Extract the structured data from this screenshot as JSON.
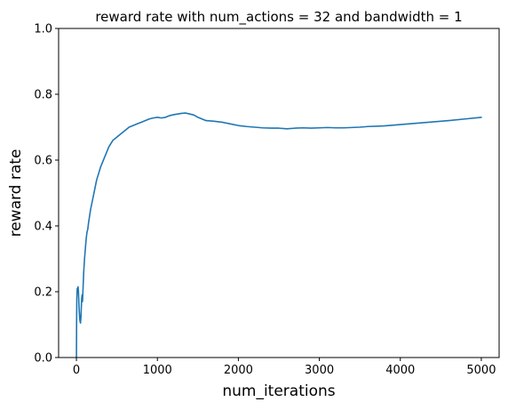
{
  "colors": {
    "series_line": "#1f77b4",
    "axes": "#000000",
    "background": "#ffffff"
  },
  "chart_data": {
    "type": "line",
    "title": "reward rate with num_actions = 32 and bandwidth = 1",
    "xlabel": "num_iterations",
    "ylabel": "reward rate",
    "xlim": [
      -220,
      5220
    ],
    "ylim": [
      0.0,
      1.0
    ],
    "xticks": [
      0,
      1000,
      2000,
      3000,
      4000,
      5000
    ],
    "yticks": [
      0.0,
      0.2,
      0.4,
      0.6,
      0.8,
      1.0
    ],
    "xtick_labels": [
      "0",
      "1000",
      "2000",
      "3000",
      "4000",
      "5000"
    ],
    "ytick_labels": [
      "0.0",
      "0.2",
      "0.4",
      "0.6",
      "0.8",
      "1.0"
    ],
    "grid": false,
    "legend": "none",
    "series": [
      {
        "x": [
          0,
          2,
          5,
          10,
          15,
          20,
          25,
          30,
          35,
          40,
          45,
          50,
          55,
          60,
          65,
          70,
          75,
          80,
          90,
          100,
          110,
          120,
          130,
          140,
          150,
          175,
          200,
          225,
          250,
          275,
          300,
          350,
          400,
          450,
          500,
          550,
          600,
          650,
          700,
          750,
          800,
          850,
          900,
          950,
          1000,
          1050,
          1100,
          1150,
          1200,
          1250,
          1300,
          1350,
          1400,
          1450,
          1500,
          1600,
          1700,
          1800,
          1900,
          2000,
          2100,
          2200,
          2300,
          2400,
          2500,
          2600,
          2700,
          2800,
          2900,
          3000,
          3100,
          3200,
          3300,
          3400,
          3500,
          3600,
          3700,
          3800,
          3900,
          4000,
          4200,
          4400,
          4600,
          4800,
          5000
        ],
        "y": [
          0.0,
          0.1,
          0.18,
          0.21,
          0.2,
          0.215,
          0.2,
          0.17,
          0.14,
          0.12,
          0.11,
          0.105,
          0.12,
          0.15,
          0.18,
          0.19,
          0.17,
          0.2,
          0.26,
          0.3,
          0.33,
          0.36,
          0.38,
          0.39,
          0.41,
          0.45,
          0.48,
          0.51,
          0.54,
          0.56,
          0.58,
          0.61,
          0.64,
          0.66,
          0.67,
          0.68,
          0.69,
          0.7,
          0.705,
          0.71,
          0.715,
          0.72,
          0.725,
          0.728,
          0.73,
          0.728,
          0.73,
          0.735,
          0.738,
          0.74,
          0.742,
          0.743,
          0.74,
          0.737,
          0.73,
          0.72,
          0.718,
          0.715,
          0.71,
          0.705,
          0.702,
          0.7,
          0.698,
          0.697,
          0.697,
          0.695,
          0.697,
          0.698,
          0.697,
          0.698,
          0.699,
          0.698,
          0.698,
          0.699,
          0.7,
          0.702,
          0.703,
          0.704,
          0.706,
          0.708,
          0.712,
          0.716,
          0.72,
          0.725,
          0.73
        ]
      }
    ]
  }
}
